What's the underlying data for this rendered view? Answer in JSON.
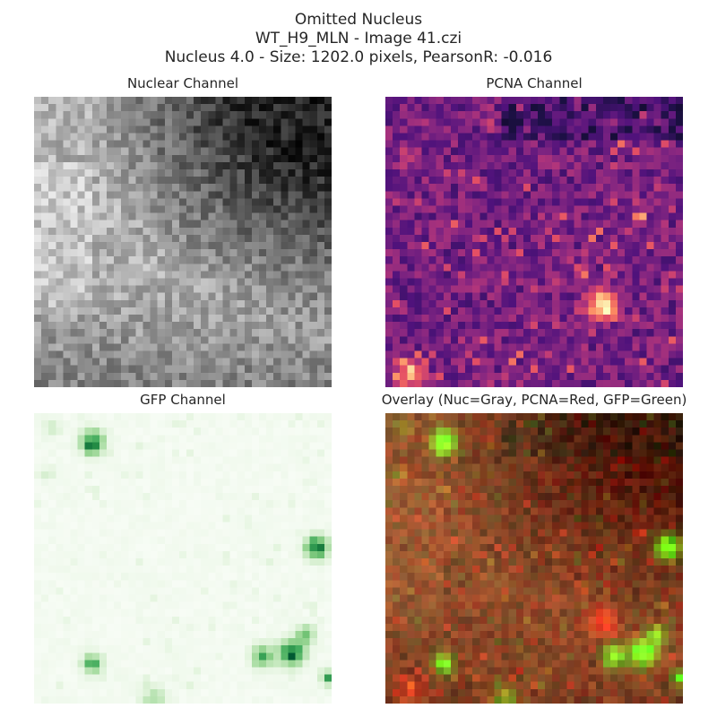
{
  "figure": {
    "title_line1": "Omitted Nucleus",
    "title_line2": "WT_H9_MLN - Image 41.czi",
    "title_line3": "Nucleus 4.0 - Size: 1202.0 pixels, PearsonR: -0.016"
  },
  "panels": {
    "nuclear": {
      "title": "Nuclear Channel",
      "colormap": "gray"
    },
    "pcna": {
      "title": "PCNA Channel",
      "colormap": "magma"
    },
    "gfp": {
      "title": "GFP Channel",
      "colormap": "Greens"
    },
    "overlay": {
      "title": "Overlay (Nuc=Gray, PCNA=Red, GFP=Green)"
    }
  }
}
